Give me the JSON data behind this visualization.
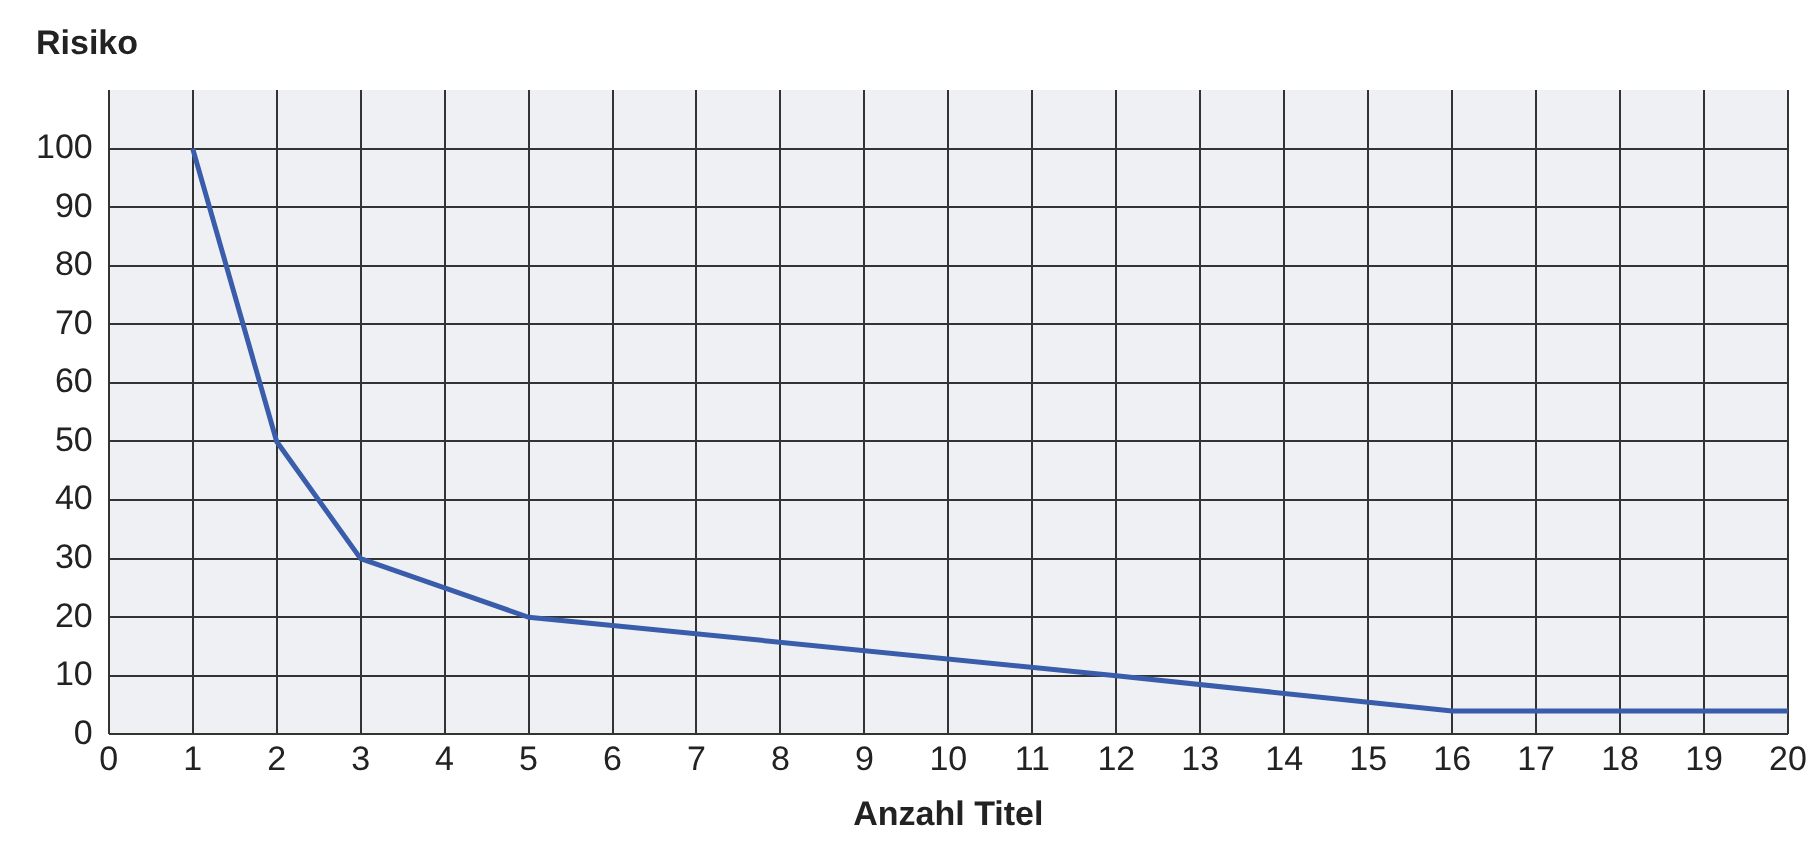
{
  "chart_data": {
    "type": "line",
    "ylabel": "Risiko",
    "xlabel": "Anzahl Titel",
    "x": [
      1,
      2,
      3,
      4,
      5,
      6,
      12,
      16,
      20
    ],
    "series": [
      {
        "color": "#3a5dab",
        "values": [
          100,
          50,
          30,
          25,
          20,
          18.6,
          10,
          4,
          4
        ]
      }
    ],
    "xlim": [
      0,
      20
    ],
    "xticks": [
      0,
      1,
      2,
      3,
      4,
      5,
      6,
      7,
      8,
      9,
      10,
      11,
      12,
      13,
      14,
      15,
      16,
      17,
      18,
      19,
      20
    ],
    "ylim": [
      0,
      110
    ],
    "yticks": [
      0,
      10,
      20,
      30,
      40,
      50,
      60,
      70,
      80,
      90,
      100
    ],
    "grid": true,
    "legend": false,
    "marker": "none",
    "line_style": "solid"
  }
}
